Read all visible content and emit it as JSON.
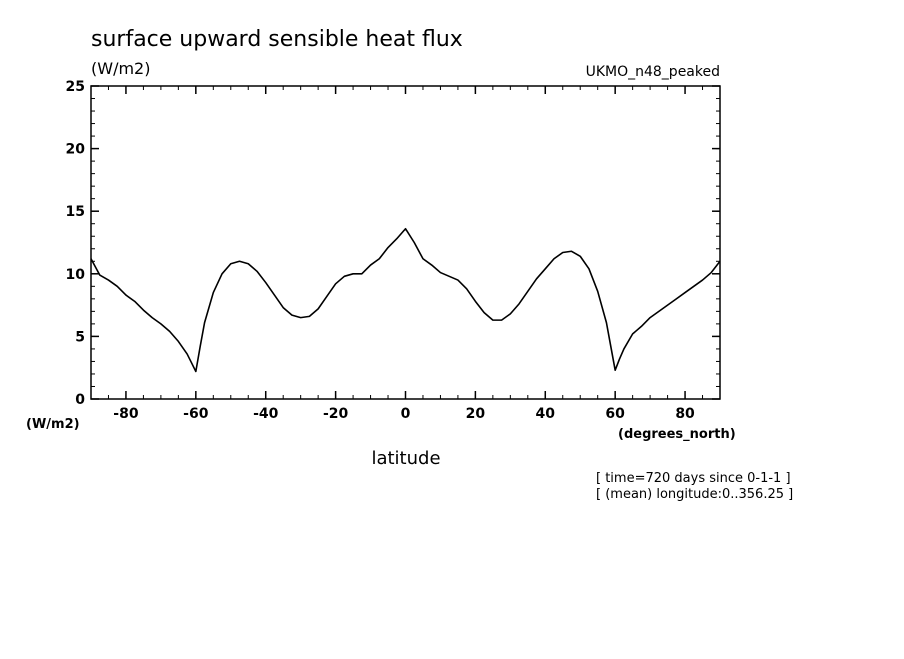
{
  "chart_data": {
    "type": "line",
    "title": "surface upward sensible heat flux",
    "units": "(W/m2)",
    "model": "UKMO_n48_peaked",
    "xlabel": "latitude",
    "x_unit_label": "(degrees_north)",
    "y_unit_label": "(W/m2)",
    "xlim": [
      -90,
      90
    ],
    "ylim": [
      0,
      25
    ],
    "x_ticks": [
      -80,
      -60,
      -40,
      -20,
      0,
      20,
      40,
      60,
      80
    ],
    "y_ticks": [
      0,
      5,
      10,
      15,
      20,
      25
    ],
    "grid": false,
    "line_color": "#000000",
    "info_lines": [
      "[ time=720 days since 0-1-1 ]",
      "[ (mean) longitude:0..356.25 ]"
    ],
    "series": [
      {
        "x": [
          -90,
          -87.5,
          -85,
          -82.5,
          -80,
          -77.5,
          -75,
          -72.5,
          -70,
          -67.5,
          -65,
          -62.5,
          -61.25,
          -60,
          -58.75,
          -57.5,
          -55,
          -52.5,
          -50,
          -47.5,
          -45,
          -42.5,
          -40,
          -37.5,
          -35,
          -32.5,
          -30,
          -27.5,
          -25,
          -22.5,
          -20,
          -17.5,
          -15,
          -12.5,
          -10,
          -7.5,
          -5,
          -2.5,
          0,
          2.5,
          5,
          7.5,
          10,
          12.5,
          15,
          17.5,
          20,
          22.5,
          25,
          27.5,
          30,
          32.5,
          35,
          37.5,
          40,
          42.5,
          45,
          47.5,
          50,
          52.5,
          55,
          57.5,
          58.75,
          60,
          61.25,
          62.5,
          65,
          67.5,
          70,
          72.5,
          75,
          77.5,
          80,
          82.5,
          85,
          87.5,
          90
        ],
        "y": [
          11.2,
          9.9,
          9.5,
          9.0,
          8.3,
          7.8,
          7.1,
          6.5,
          6.0,
          5.4,
          4.6,
          3.6,
          2.9,
          2.2,
          4.2,
          6.1,
          8.5,
          10.0,
          10.8,
          11.0,
          10.8,
          10.2,
          9.3,
          8.3,
          7.3,
          6.7,
          6.5,
          6.6,
          7.2,
          8.2,
          9.2,
          9.8,
          10.0,
          10.0,
          10.7,
          11.2,
          12.1,
          12.8,
          13.6,
          12.5,
          11.2,
          10.7,
          10.1,
          9.8,
          9.5,
          8.8,
          7.8,
          6.9,
          6.3,
          6.3,
          6.8,
          7.6,
          8.6,
          9.6,
          10.4,
          11.2,
          11.7,
          11.8,
          11.4,
          10.4,
          8.6,
          6.1,
          4.2,
          2.3,
          3.2,
          4.0,
          5.2,
          5.8,
          6.5,
          7.0,
          7.5,
          8.0,
          8.5,
          9.0,
          9.5,
          10.1,
          11.0
        ]
      }
    ]
  }
}
